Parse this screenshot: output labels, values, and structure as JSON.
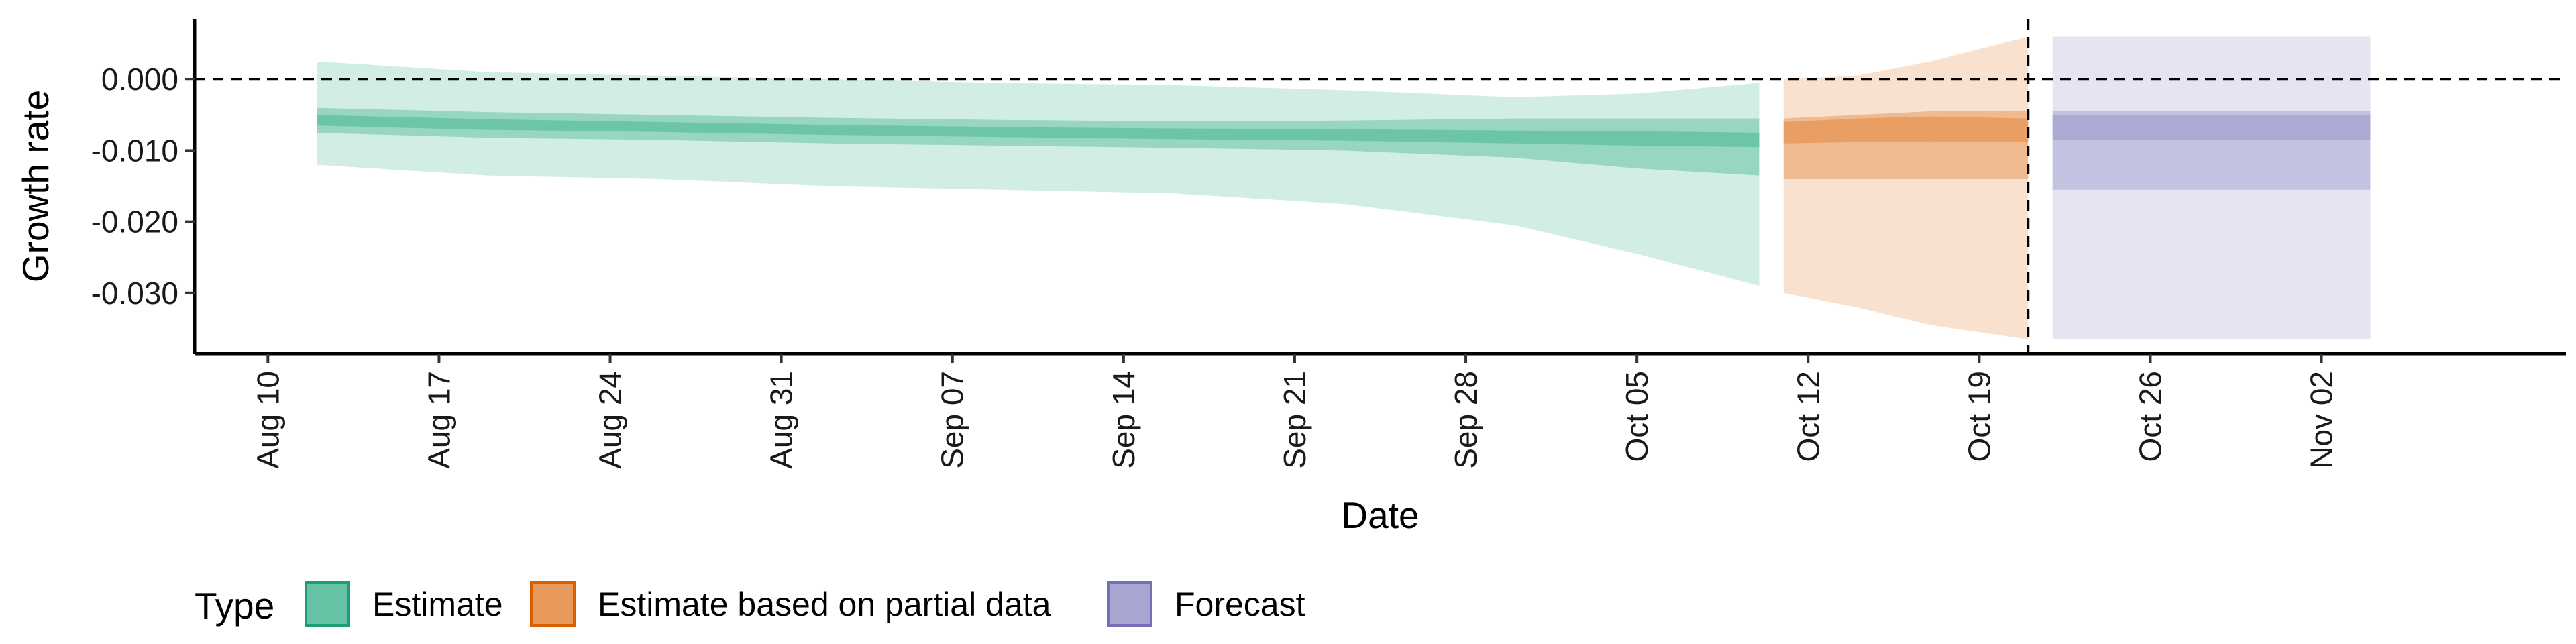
{
  "chart_data": {
    "type": "area",
    "title": "",
    "xlabel": "Date",
    "ylabel": "Growth rate",
    "x_type": "date",
    "xlim": [
      "2020-08-07",
      "2020-11-12"
    ],
    "ylim": [
      -0.0385,
      0.0085
    ],
    "x_ticks": [
      {
        "date": "2020-08-10",
        "label": "Aug 10"
      },
      {
        "date": "2020-08-17",
        "label": "Aug 17"
      },
      {
        "date": "2020-08-24",
        "label": "Aug 24"
      },
      {
        "date": "2020-08-31",
        "label": "Aug 31"
      },
      {
        "date": "2020-09-07",
        "label": "Sep 07"
      },
      {
        "date": "2020-09-14",
        "label": "Sep 14"
      },
      {
        "date": "2020-09-21",
        "label": "Sep 21"
      },
      {
        "date": "2020-09-28",
        "label": "Sep 28"
      },
      {
        "date": "2020-10-05",
        "label": "Oct 05"
      },
      {
        "date": "2020-10-12",
        "label": "Oct 12"
      },
      {
        "date": "2020-10-19",
        "label": "Oct 19"
      },
      {
        "date": "2020-10-26",
        "label": "Oct 26"
      },
      {
        "date": "2020-11-02",
        "label": "Nov 02"
      }
    ],
    "y_ticks": [
      {
        "value": 0.0,
        "label": "0.000"
      },
      {
        "value": -0.01,
        "label": "-0.010"
      },
      {
        "value": -0.02,
        "label": "-0.020"
      },
      {
        "value": -0.03,
        "label": "-0.030"
      }
    ],
    "reference_lines": {
      "horizontal_y": 0.0,
      "vertical_x": "2020-10-21",
      "style": "dashed"
    },
    "grid": false,
    "legend": {
      "title": "Type",
      "position": "bottom-left",
      "entries": [
        {
          "label": "Estimate",
          "fill": "#66c2a5",
          "stroke": "#1b9e77"
        },
        {
          "label": "Estimate based on partial data",
          "fill": "#e89a5c",
          "stroke": "#d95f02"
        },
        {
          "label": "Forecast",
          "fill": "#a8a5d1",
          "stroke": "#7570b3"
        }
      ]
    },
    "series": [
      {
        "type": "Estimate",
        "color": "#66c2a5",
        "band_opacities": [
          0.3,
          0.55,
          0.85
        ],
        "points": [
          {
            "date": "2020-08-12",
            "lower90": -0.012,
            "lower50": -0.0075,
            "lower20": -0.0065,
            "upper20": -0.005,
            "upper50": -0.004,
            "upper90": 0.0025
          },
          {
            "date": "2020-08-19",
            "lower90": -0.0135,
            "lower50": -0.0082,
            "lower20": -0.0071,
            "upper20": -0.0056,
            "upper50": -0.0046,
            "upper90": 0.001
          },
          {
            "date": "2020-08-26",
            "lower90": -0.014,
            "lower50": -0.0085,
            "lower20": -0.0074,
            "upper20": -0.006,
            "upper50": -0.005,
            "upper90": 0.0005
          },
          {
            "date": "2020-09-02",
            "lower90": -0.015,
            "lower50": -0.009,
            "lower20": -0.0078,
            "upper20": -0.0064,
            "upper50": -0.0054,
            "upper90": 0.0
          },
          {
            "date": "2020-09-09",
            "lower90": -0.0155,
            "lower50": -0.0093,
            "lower20": -0.0081,
            "upper20": -0.0067,
            "upper50": -0.0057,
            "upper90": -0.0005
          },
          {
            "date": "2020-09-16",
            "lower90": -0.016,
            "lower50": -0.0096,
            "lower20": -0.0084,
            "upper20": -0.0069,
            "upper50": -0.0059,
            "upper90": -0.0008
          },
          {
            "date": "2020-09-23",
            "lower90": -0.0175,
            "lower50": -0.01,
            "lower20": -0.0086,
            "upper20": -0.007,
            "upper50": -0.0058,
            "upper90": -0.0015
          },
          {
            "date": "2020-09-30",
            "lower90": -0.0205,
            "lower50": -0.011,
            "lower20": -0.009,
            "upper20": -0.0072,
            "upper50": -0.0055,
            "upper90": -0.0025
          },
          {
            "date": "2020-10-05",
            "lower90": -0.0245,
            "lower50": -0.0125,
            "lower20": -0.0093,
            "upper20": -0.0073,
            "upper50": -0.0055,
            "upper90": -0.002
          },
          {
            "date": "2020-10-10",
            "lower90": -0.029,
            "lower50": -0.0135,
            "lower20": -0.0095,
            "upper20": -0.0075,
            "upper50": -0.0055,
            "upper90": -0.0005
          }
        ]
      },
      {
        "type": "Estimate based on partial data",
        "color": "#e89a5c",
        "band_opacities": [
          0.3,
          0.55,
          0.85
        ],
        "points": [
          {
            "date": "2020-10-11",
            "lower90": -0.03,
            "lower50": -0.014,
            "lower20": -0.009,
            "upper20": -0.006,
            "upper50": -0.0055,
            "upper90": 0.0
          },
          {
            "date": "2020-10-14",
            "lower90": -0.032,
            "lower50": -0.014,
            "lower20": -0.0088,
            "upper20": -0.0055,
            "upper50": -0.005,
            "upper90": 0.0005
          },
          {
            "date": "2020-10-17",
            "lower90": -0.0345,
            "lower50": -0.014,
            "lower20": -0.0087,
            "upper20": -0.0052,
            "upper50": -0.0045,
            "upper90": 0.0025
          },
          {
            "date": "2020-10-21",
            "lower90": -0.0365,
            "lower50": -0.014,
            "lower20": -0.0088,
            "upper20": -0.0055,
            "upper50": -0.0045,
            "upper90": 0.006
          }
        ]
      },
      {
        "type": "Forecast",
        "color": "#a8a5d1",
        "band_opacities": [
          0.3,
          0.55,
          0.85
        ],
        "points": [
          {
            "date": "2020-10-22",
            "lower90": -0.0365,
            "lower50": -0.0155,
            "lower20": -0.0085,
            "upper20": -0.005,
            "upper50": -0.0045,
            "upper90": 0.006
          },
          {
            "date": "2020-11-04",
            "lower90": -0.0365,
            "lower50": -0.0155,
            "lower20": -0.0085,
            "upper20": -0.005,
            "upper50": -0.0045,
            "upper90": 0.006
          }
        ]
      }
    ]
  }
}
